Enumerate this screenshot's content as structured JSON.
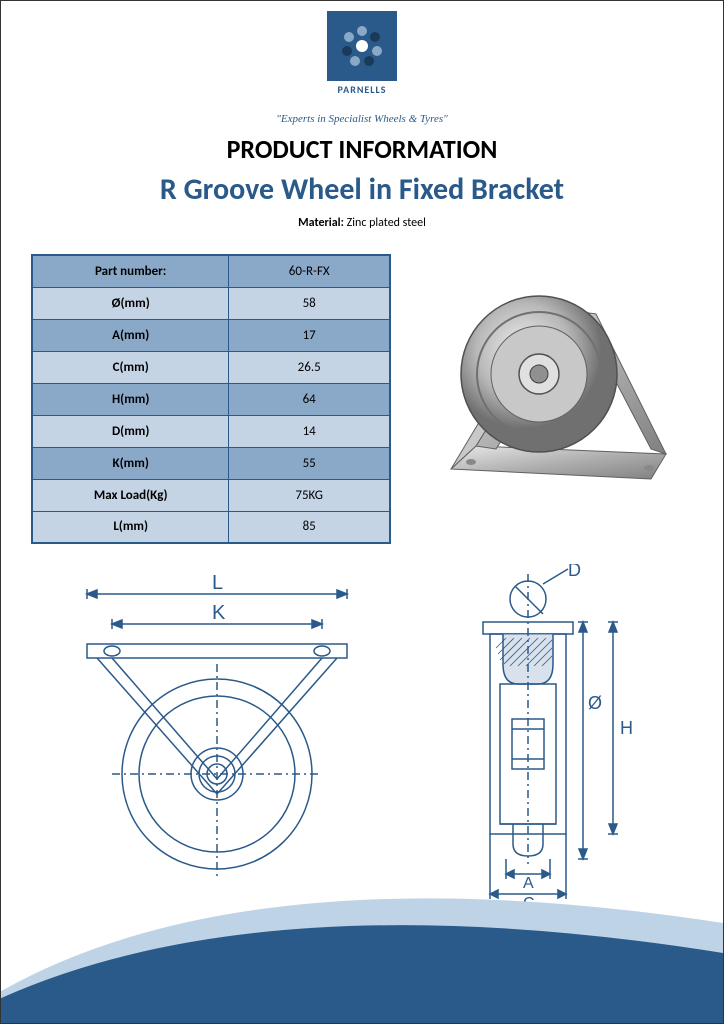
{
  "brand": {
    "name": "PARNELLS",
    "tagline": "\"Experts in Specialist Wheels & Tyres\"",
    "logo_bg": "#2a5a8a",
    "logo_dot_dark": "#1a3a5a",
    "logo_dot_light": "#8aa9c9"
  },
  "headings": {
    "h1": "PRODUCT INFORMATION",
    "h2": "R Groove Wheel in Fixed Bracket"
  },
  "material": {
    "label": "Material:",
    "value": "Zinc plated steel"
  },
  "spec_table": {
    "header_bg_dark": "#8aa9c9",
    "header_bg_light": "#c5d4e4",
    "border_color": "#2a5a8a",
    "rows": [
      {
        "label": "Part number:",
        "value": "60-R-FX",
        "shade": "dark"
      },
      {
        "label": "Ø(mm)",
        "value": "58",
        "shade": "light"
      },
      {
        "label": "A(mm)",
        "value": "17",
        "shade": "dark"
      },
      {
        "label": "C(mm)",
        "value": "26.5",
        "shade": "light"
      },
      {
        "label": "H(mm)",
        "value": "64",
        "shade": "dark"
      },
      {
        "label": "D(mm)",
        "value": "14",
        "shade": "light"
      },
      {
        "label": "K(mm)",
        "value": "55",
        "shade": "dark"
      },
      {
        "label": "Max Load(Kg)",
        "value": "75KG",
        "shade": "light"
      },
      {
        "label": "L(mm)",
        "value": "85",
        "shade": "light"
      }
    ]
  },
  "diagram": {
    "stroke": "#2a5a8a",
    "stroke_width": 1.5,
    "labels": {
      "L": "L",
      "K": "K",
      "D": "D",
      "H": "H",
      "A": "A",
      "C": "C",
      "dia": "Ø"
    },
    "font_size": 18
  },
  "swoosh": {
    "color_outer": "#bfd3e6",
    "color_inner": "#2a5a8a"
  },
  "photo": {
    "metal_light": "#d0d0d0",
    "metal_mid": "#a8a8a8",
    "metal_dark": "#707070"
  }
}
